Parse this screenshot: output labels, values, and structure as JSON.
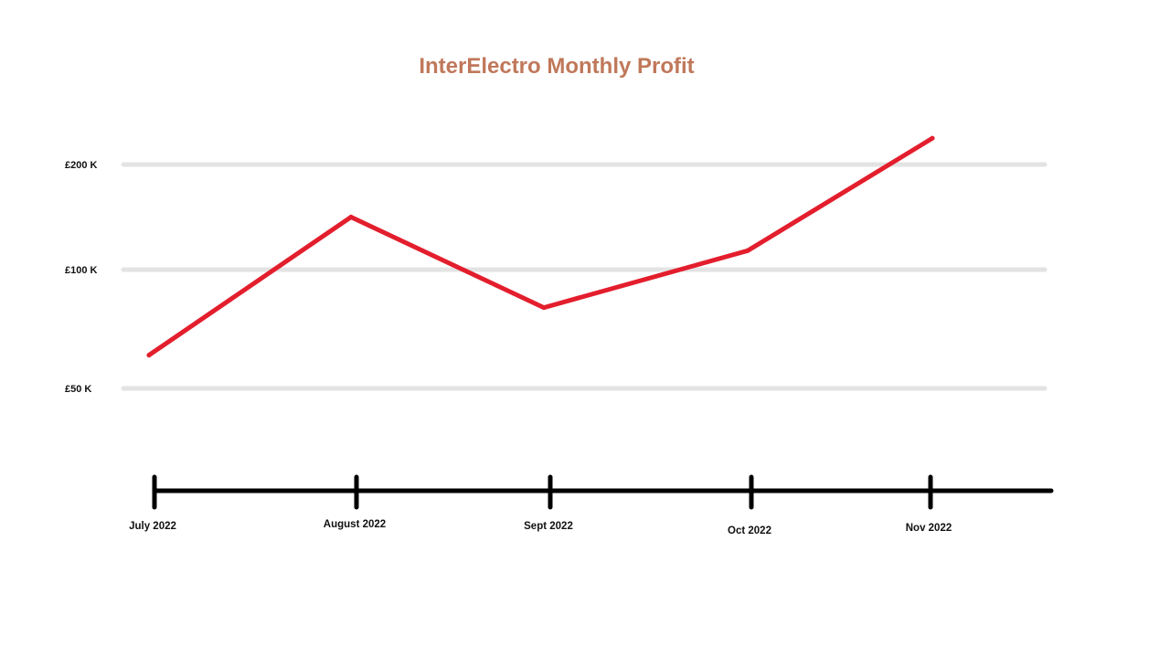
{
  "chart_data": {
    "type": "line",
    "title": "InterElectro Monthly Profit",
    "categories": [
      "July 2022",
      "August 2022",
      "Sept 2022",
      "Oct 2022",
      "Nov 2022"
    ],
    "series": [
      {
        "values": [
          64,
          150,
          84,
          118,
          225
        ]
      }
    ],
    "y_ticks": [
      {
        "value": 50,
        "label": "£50 K"
      },
      {
        "value": 100,
        "label": "£100 K"
      },
      {
        "value": 200,
        "label": "£200 K"
      }
    ],
    "ylim": [
      50,
      200
    ],
    "grid": true,
    "legend": "none"
  },
  "colors": {
    "title": "#c0785a",
    "line": "#e31e2d",
    "grid": "#e3e3e3",
    "axis": "#000000"
  }
}
